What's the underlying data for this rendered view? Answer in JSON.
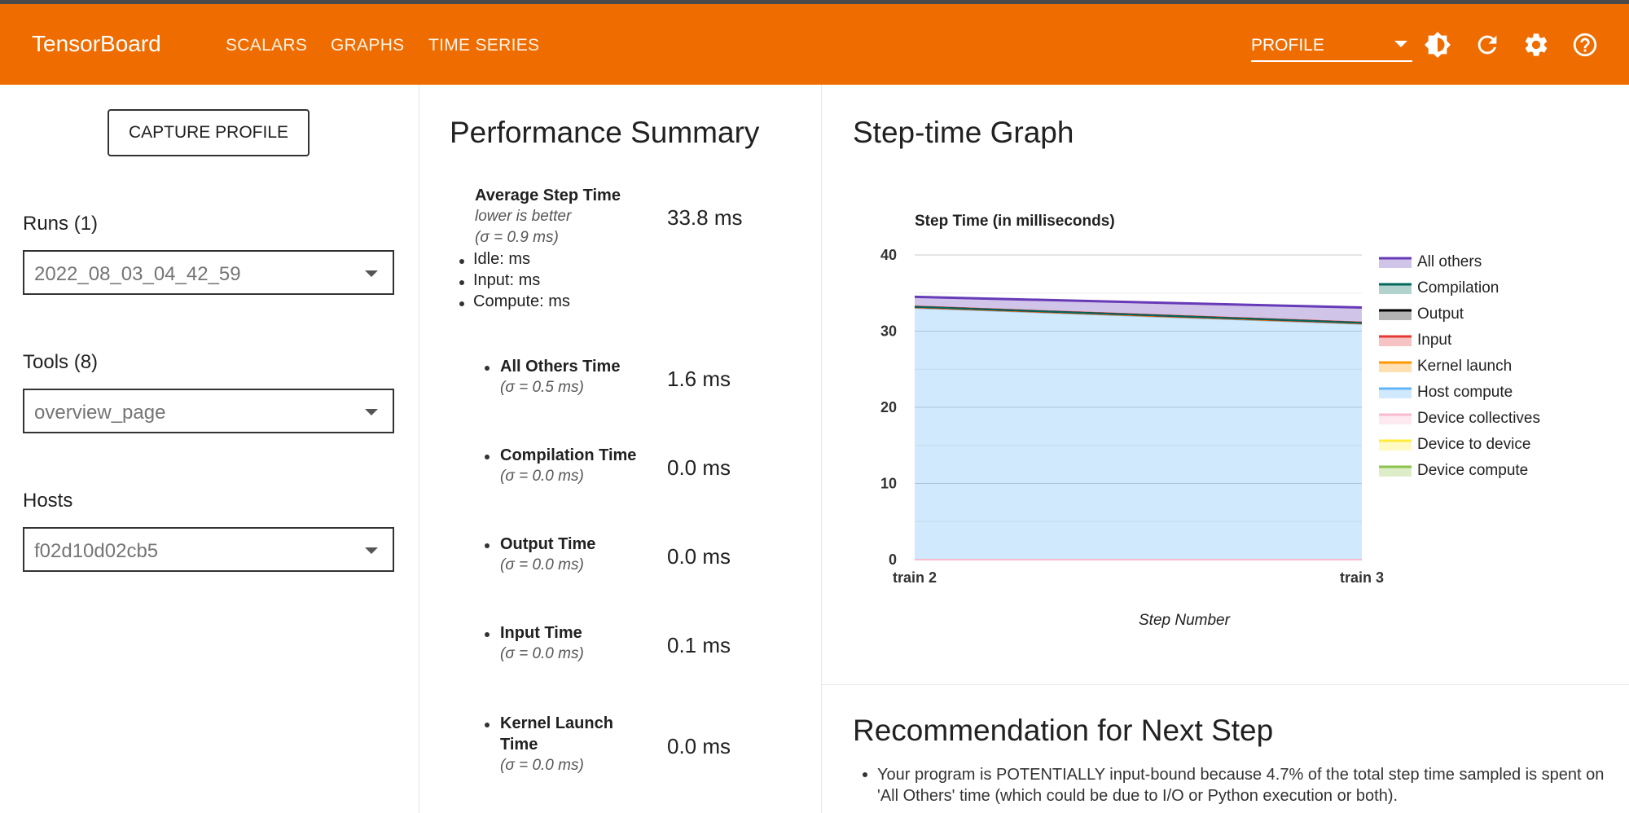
{
  "app": {
    "title": "TensorBoard",
    "nav": [
      "SCALARS",
      "GRAPHS",
      "TIME SERIES"
    ],
    "active_tool": "PROFILE",
    "icons": [
      "brightness-icon",
      "refresh-icon",
      "settings-icon",
      "help-icon"
    ],
    "accent_color": "#ef6c00"
  },
  "sidebar": {
    "capture_label": "CAPTURE PROFILE",
    "runs_label": "Runs (1)",
    "runs_value": "2022_08_03_04_42_59",
    "tools_label": "Tools (8)",
    "tools_value": "overview_page",
    "hosts_label": "Hosts",
    "hosts_value": "f02d10d02cb5"
  },
  "summary": {
    "title": "Performance Summary",
    "avg": {
      "label": "Average Step Time",
      "note": "lower is better",
      "sigma": "(σ = 0.9 ms)",
      "value": "33.8 ms"
    },
    "breakdown": [
      "Idle: ms",
      "Input: ms",
      "Compute: ms"
    ],
    "metrics": [
      {
        "label": "All Others Time",
        "sigma": "(σ = 0.5 ms)",
        "value": "1.6 ms"
      },
      {
        "label": "Compilation Time",
        "sigma": "(σ = 0.0 ms)",
        "value": "0.0 ms"
      },
      {
        "label": "Output Time",
        "sigma": "(σ = 0.0 ms)",
        "value": "0.0 ms"
      },
      {
        "label": "Input Time",
        "sigma": "(σ = 0.0 ms)",
        "value": "0.1 ms"
      },
      {
        "label_line1": "Kernel Launch",
        "label_line2": "Time",
        "sigma": "(σ = 0.0 ms)",
        "value": "0.0 ms"
      }
    ]
  },
  "graph": {
    "heading": "Step-time Graph"
  },
  "chart_data": {
    "type": "area",
    "title": "Step Time (in milliseconds)",
    "xlabel": "Step Number",
    "ylabel": "",
    "x": [
      "train 2",
      "train 3"
    ],
    "ylim": [
      0,
      40
    ],
    "yticks": [
      0,
      10,
      20,
      30,
      40
    ],
    "stacked": true,
    "legend_position": "right",
    "series": [
      {
        "name": "Device compute",
        "values": [
          0,
          0
        ],
        "color": "#8bc34a"
      },
      {
        "name": "Device to device",
        "values": [
          0,
          0
        ],
        "color": "#ffeb3b"
      },
      {
        "name": "Device collectives",
        "values": [
          0,
          0
        ],
        "color": "#f8bbd0"
      },
      {
        "name": "Host compute",
        "values": [
          33.1,
          31.0
        ],
        "color": "#64b5f6"
      },
      {
        "name": "Kernel launch",
        "values": [
          0,
          0
        ],
        "color": "#ff9800"
      },
      {
        "name": "Input",
        "values": [
          0.1,
          0.1
        ],
        "color": "#e53935"
      },
      {
        "name": "Output",
        "values": [
          0,
          0
        ],
        "color": "#000000"
      },
      {
        "name": "Compilation",
        "values": [
          0,
          0
        ],
        "color": "#00695c"
      },
      {
        "name": "All others",
        "values": [
          1.3,
          2.0
        ],
        "color": "#673ab7"
      }
    ]
  },
  "recommendation": {
    "title": "Recommendation for Next Step",
    "text": "Your program is POTENTIALLY input-bound because 4.7% of the total step time sampled is spent on 'All Others' time (which could be due to I/O or Python execution or both)."
  }
}
